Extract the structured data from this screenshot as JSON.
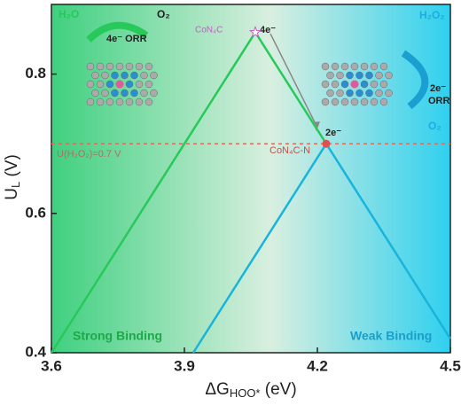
{
  "chart_data": {
    "type": "line",
    "xlim": [
      3.6,
      4.5
    ],
    "ylim": [
      0.4,
      0.9
    ],
    "xticks": [
      3.6,
      3.9,
      4.2,
      4.5
    ],
    "yticks": [
      0.4,
      0.6,
      0.8
    ],
    "x_label": [
      "ΔG",
      "HOO*",
      " (eV)"
    ],
    "y_label": [
      "U",
      "L",
      " (V)"
    ],
    "series": [
      {
        "color": "#27c95a",
        "x": [
          3.6,
          4.06,
          4.22
        ],
        "values": [
          0.4,
          0.86,
          0.7
        ]
      },
      {
        "color": "#19b4dc",
        "x": [
          3.92,
          4.22,
          4.5
        ],
        "values": [
          0.4,
          0.7,
          0.42
        ]
      }
    ],
    "reference_line": {
      "value": 0.7,
      "color": "#e06a5a",
      "label": "U(H₂O₂)=0.7 V"
    },
    "annotations": {
      "peak_4e": "CoN₄C",
      "e4": "4e⁻",
      "point_2e": "CoN₄C-N",
      "e2": "2e⁻",
      "h2o": "H₂O",
      "o2_left": "O₂",
      "orr_4e": "4e⁻ ORR",
      "h2o2": "H₂O₂",
      "orr_2e_a": "2e⁻",
      "orr_2e_b": "ORR",
      "o2_right": "O₂",
      "strong": "Strong Binding",
      "weak": "Weak Binding"
    }
  }
}
